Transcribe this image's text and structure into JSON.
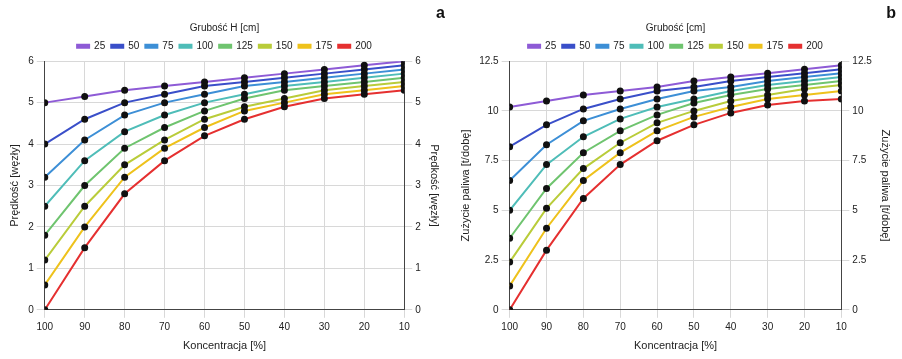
{
  "chart_data": [
    {
      "type": "line",
      "title": "a",
      "x_label": "Koncentracja [%]",
      "y_label": "Prędkość [węzły]",
      "y2_label": "Prędkość [węzły]",
      "legend_title": "Grubość H [cm]",
      "legend": "top",
      "grid": true,
      "marker": "circle",
      "x": [
        10,
        20,
        30,
        40,
        50,
        60,
        70,
        80,
        90,
        100
      ],
      "xlim": [
        100,
        10
      ],
      "xticks": [
        10,
        20,
        30,
        40,
        50,
        60,
        70,
        80,
        90,
        100
      ],
      "ylim": [
        0,
        6
      ],
      "yticks": [
        0,
        1,
        2,
        3,
        4,
        5,
        6
      ],
      "y2lim": [
        0,
        6
      ],
      "y2ticks": [
        0,
        1,
        2,
        3,
        4,
        5,
        6
      ],
      "series": [
        {
          "name": "25",
          "color": "#8e5bd6",
          "values": [
            6.0,
            5.9,
            5.8,
            5.7,
            5.6,
            5.5,
            5.4,
            5.3,
            5.15,
            5.0
          ]
        },
        {
          "name": "50",
          "color": "#3a4fc9",
          "values": [
            5.9,
            5.8,
            5.7,
            5.6,
            5.5,
            5.4,
            5.2,
            5.0,
            4.6,
            4.0
          ]
        },
        {
          "name": "75",
          "color": "#3d8fd6",
          "values": [
            5.8,
            5.7,
            5.6,
            5.5,
            5.4,
            5.2,
            5.0,
            4.7,
            4.1,
            3.2
          ]
        },
        {
          "name": "100",
          "color": "#4fbdb8",
          "values": [
            5.7,
            5.6,
            5.5,
            5.4,
            5.2,
            5.0,
            4.7,
            4.3,
            3.6,
            2.5
          ]
        },
        {
          "name": "125",
          "color": "#6fc46f",
          "values": [
            5.6,
            5.5,
            5.4,
            5.3,
            5.1,
            4.8,
            4.4,
            3.9,
            3.0,
            1.8
          ]
        },
        {
          "name": "150",
          "color": "#b9cc3a",
          "values": [
            5.5,
            5.4,
            5.3,
            5.1,
            4.9,
            4.6,
            4.1,
            3.5,
            2.5,
            1.2
          ]
        },
        {
          "name": "175",
          "color": "#eec21c",
          "values": [
            5.4,
            5.3,
            5.2,
            5.0,
            4.8,
            4.4,
            3.9,
            3.2,
            2.0,
            0.6
          ]
        },
        {
          "name": "200",
          "color": "#e53030",
          "values": [
            5.3,
            5.2,
            5.1,
            4.9,
            4.6,
            4.2,
            3.6,
            2.8,
            1.5,
            0.0
          ]
        }
      ]
    },
    {
      "type": "line",
      "title": "b",
      "x_label": "Koncentracja [%]",
      "y_label": "Zużycie paliwa [t/dobę]",
      "y2_label": "Zużycie paliwa [t/dobę]",
      "legend_title": "Grubość [cm]",
      "legend": "top",
      "grid": true,
      "marker": "circle",
      "x": [
        10,
        20,
        30,
        40,
        50,
        60,
        70,
        80,
        90,
        100
      ],
      "xlim": [
        100,
        10
      ],
      "xticks": [
        10,
        20,
        30,
        40,
        50,
        60,
        70,
        80,
        90,
        100
      ],
      "ylim": [
        0,
        12.5
      ],
      "yticks": [
        0,
        2.5,
        5,
        7.5,
        10,
        12.5
      ],
      "y2lim": [
        0,
        12.5
      ],
      "y2ticks": [
        0,
        2.5,
        5,
        7.5,
        10,
        12.5
      ],
      "series": [
        {
          "name": "25",
          "color": "#8e5bd6",
          "values": [
            12.3,
            12.1,
            11.9,
            11.7,
            11.5,
            11.2,
            11.0,
            10.8,
            10.5,
            10.2
          ]
        },
        {
          "name": "50",
          "color": "#3a4fc9",
          "values": [
            12.1,
            11.9,
            11.7,
            11.5,
            11.2,
            11.0,
            10.6,
            10.1,
            9.3,
            8.2
          ]
        },
        {
          "name": "75",
          "color": "#3d8fd6",
          "values": [
            11.9,
            11.7,
            11.5,
            11.2,
            11.0,
            10.6,
            10.1,
            9.5,
            8.3,
            6.5
          ]
        },
        {
          "name": "100",
          "color": "#4fbdb8",
          "values": [
            11.7,
            11.5,
            11.3,
            11.0,
            10.6,
            10.2,
            9.6,
            8.7,
            7.3,
            5.0
          ]
        },
        {
          "name": "125",
          "color": "#6fc46f",
          "values": [
            11.5,
            11.3,
            11.1,
            10.8,
            10.4,
            9.8,
            9.0,
            7.9,
            6.1,
            3.6
          ]
        },
        {
          "name": "150",
          "color": "#b9cc3a",
          "values": [
            11.3,
            11.1,
            10.8,
            10.5,
            10.0,
            9.4,
            8.4,
            7.1,
            5.1,
            2.4
          ]
        },
        {
          "name": "175",
          "color": "#eec21c",
          "values": [
            11.0,
            10.8,
            10.6,
            10.2,
            9.7,
            9.0,
            7.9,
            6.5,
            4.1,
            1.2
          ]
        },
        {
          "name": "200",
          "color": "#e53030",
          "values": [
            10.6,
            10.5,
            10.3,
            9.9,
            9.3,
            8.5,
            7.3,
            5.6,
            3.0,
            0.0
          ]
        }
      ]
    }
  ]
}
